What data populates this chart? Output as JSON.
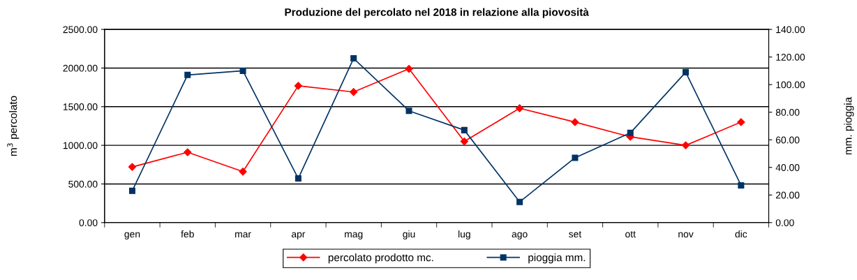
{
  "chart_data": {
    "type": "line",
    "title": "Produzione del percolato nel 2018 in relazione alla piovosità",
    "ylabel": "m$^{3}$ percolato",
    "y2label": "mm. pioggia",
    "categories": [
      "gen",
      "feb",
      "mar",
      "apr",
      "mag",
      "giu",
      "lug",
      "ago",
      "set",
      "ott",
      "nov",
      "dic"
    ],
    "series": [
      {
        "name": "percolato prodotto mc.",
        "color": "#ff0000",
        "marker": "diamond",
        "values": [
          720,
          910,
          660,
          1770,
          1690,
          1990,
          1050,
          1480,
          1300,
          1110,
          1000,
          1300
        ]
      },
      {
        "name": "pioggia mm.",
        "color": "#003366",
        "marker": "square",
        "axis": "y2",
        "values": [
          23,
          107,
          110,
          32,
          119,
          81,
          67,
          15,
          47,
          65,
          109,
          27
        ]
      }
    ],
    "ylim": [
      0,
      2500
    ],
    "yticks": [
      {
        "value": 0,
        "label": "0.00"
      },
      {
        "value": 500,
        "label": "500.00"
      },
      {
        "value": 1000,
        "label": "1000.00"
      },
      {
        "value": 1500,
        "label": "1500.00"
      },
      {
        "value": 2000,
        "label": "2000.00"
      },
      {
        "value": 2500,
        "label": "2500.00"
      }
    ],
    "y2lim": [
      0,
      140
    ],
    "y2ticks": [
      {
        "value": 0,
        "label": "0.00"
      },
      {
        "value": 20,
        "label": "20.00"
      },
      {
        "value": 40,
        "label": "40.00"
      },
      {
        "value": 60,
        "label": "60.00"
      },
      {
        "value": 80,
        "label": "80.00"
      },
      {
        "value": 100,
        "label": "100.00"
      },
      {
        "value": 120,
        "label": "120.00"
      },
      {
        "value": 140,
        "label": "140.00"
      }
    ],
    "grid": "y",
    "legend": "bottom"
  }
}
